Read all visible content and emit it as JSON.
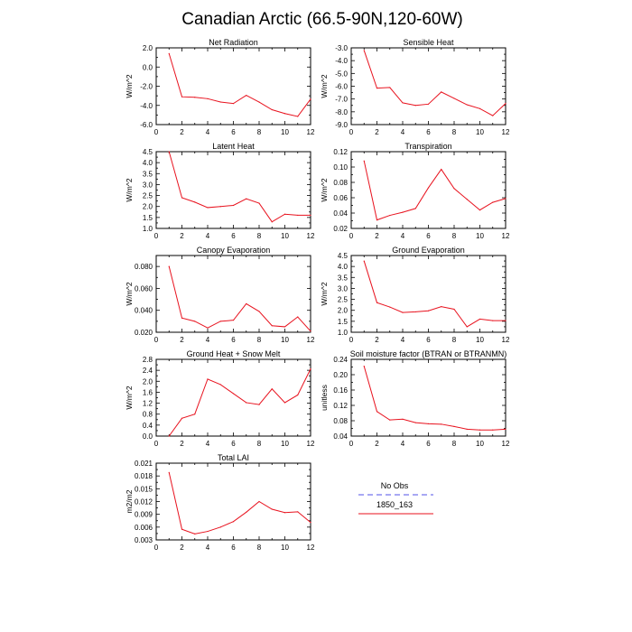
{
  "title": "Canadian Arctic (66.5-90N,120-60W)",
  "legend": {
    "items": [
      {
        "label": "No Obs",
        "color": "#8c8cf0",
        "dashed": true
      },
      {
        "label": "1850_163",
        "color": "#e8121e",
        "dashed": false
      }
    ]
  },
  "chart_data": [
    {
      "type": "line",
      "title": "Net Radiation",
      "ylabel": "W/m^2",
      "x": [
        1,
        2,
        3,
        4,
        5,
        6,
        7,
        8,
        9,
        10,
        11,
        12
      ],
      "xlim": [
        0,
        12
      ],
      "xticks": [
        0,
        2,
        4,
        6,
        8,
        10,
        12
      ],
      "ylim": [
        -6.0,
        2.0
      ],
      "yticks": [
        -6.0,
        -4.0,
        -2.0,
        0.0,
        2.0
      ],
      "ytick_labels": [
        "-6.0",
        "-4.0",
        "-2.0",
        "0.0",
        "2.0"
      ],
      "series": [
        {
          "color": "#e8121e",
          "values": [
            1.4,
            -3.1,
            -3.15,
            -3.3,
            -3.65,
            -3.8,
            -2.95,
            -3.65,
            -4.45,
            -4.85,
            -5.15,
            -3.35
          ]
        }
      ]
    },
    {
      "type": "line",
      "title": "Sensible Heat",
      "ylabel": "W/m^2",
      "x": [
        1,
        2,
        3,
        4,
        5,
        6,
        7,
        8,
        9,
        10,
        11,
        12
      ],
      "xlim": [
        0,
        12
      ],
      "xticks": [
        0,
        2,
        4,
        6,
        8,
        10,
        12
      ],
      "ylim": [
        -9.0,
        -3.0
      ],
      "yticks": [
        -9.0,
        -8.0,
        -7.0,
        -6.0,
        -5.0,
        -4.0,
        -3.0
      ],
      "ytick_labels": [
        "-9.0",
        "-8.0",
        "-7.0",
        "-6.0",
        "-5.0",
        "-4.0",
        "-3.0"
      ],
      "series": [
        {
          "color": "#e8121e",
          "values": [
            -3.2,
            -6.15,
            -6.1,
            -7.3,
            -7.5,
            -7.4,
            -6.45,
            -6.95,
            -7.45,
            -7.75,
            -8.3,
            -7.35
          ]
        }
      ]
    },
    {
      "type": "line",
      "title": "Latent Heat",
      "ylabel": "W/m^2",
      "x": [
        1,
        2,
        3,
        4,
        5,
        6,
        7,
        8,
        9,
        10,
        11,
        12
      ],
      "xlim": [
        0,
        12
      ],
      "xticks": [
        0,
        2,
        4,
        6,
        8,
        10,
        12
      ],
      "ylim": [
        1.0,
        4.5
      ],
      "yticks": [
        1.0,
        1.5,
        2.0,
        2.5,
        3.0,
        3.5,
        4.0,
        4.5
      ],
      "ytick_labels": [
        "1.0",
        "1.5",
        "2.0",
        "2.5",
        "3.0",
        "3.5",
        "4.0",
        "4.5"
      ],
      "series": [
        {
          "color": "#e8121e",
          "values": [
            4.5,
            2.4,
            2.2,
            1.95,
            2.0,
            2.05,
            2.35,
            2.15,
            1.3,
            1.65,
            1.6,
            1.6
          ]
        }
      ]
    },
    {
      "type": "line",
      "title": "Transpiration",
      "ylabel": "W/m^2",
      "x": [
        1,
        2,
        3,
        4,
        5,
        6,
        7,
        8,
        9,
        10,
        11,
        12
      ],
      "xlim": [
        0,
        12
      ],
      "xticks": [
        0,
        2,
        4,
        6,
        8,
        10,
        12
      ],
      "ylim": [
        0.02,
        0.12
      ],
      "yticks": [
        0.02,
        0.04,
        0.06,
        0.08,
        0.1,
        0.12
      ],
      "ytick_labels": [
        "0.02",
        "0.04",
        "0.06",
        "0.08",
        "0.10",
        "0.12"
      ],
      "series": [
        {
          "color": "#e8121e",
          "values": [
            0.108,
            0.031,
            0.037,
            0.041,
            0.046,
            0.073,
            0.097,
            0.072,
            0.058,
            0.044,
            0.054,
            0.059
          ]
        }
      ]
    },
    {
      "type": "line",
      "title": "Canopy Evaporation",
      "ylabel": "W/m^2",
      "x": [
        1,
        2,
        3,
        4,
        5,
        6,
        7,
        8,
        9,
        10,
        11,
        12
      ],
      "xlim": [
        0,
        12
      ],
      "xticks": [
        0,
        2,
        4,
        6,
        8,
        10,
        12
      ],
      "ylim": [
        0.02,
        0.09
      ],
      "yticks": [
        0.02,
        0.04,
        0.06,
        0.08
      ],
      "ytick_labels": [
        "0.020",
        "0.040",
        "0.060",
        "0.080"
      ],
      "series": [
        {
          "color": "#e8121e",
          "values": [
            0.08,
            0.033,
            0.03,
            0.024,
            0.03,
            0.031,
            0.046,
            0.039,
            0.026,
            0.025,
            0.034,
            0.021
          ]
        }
      ]
    },
    {
      "type": "line",
      "title": "Ground Evaporation",
      "ylabel": "W/m^2",
      "x": [
        1,
        2,
        3,
        4,
        5,
        6,
        7,
        8,
        9,
        10,
        11,
        12
      ],
      "xlim": [
        0,
        12
      ],
      "xticks": [
        0,
        2,
        4,
        6,
        8,
        10,
        12
      ],
      "ylim": [
        1.0,
        4.5
      ],
      "yticks": [
        1.0,
        1.5,
        2.0,
        2.5,
        3.0,
        3.5,
        4.0,
        4.5
      ],
      "ytick_labels": [
        "1.0",
        "1.5",
        "2.0",
        "2.5",
        "3.0",
        "3.5",
        "4.0",
        "4.5"
      ],
      "series": [
        {
          "color": "#e8121e",
          "values": [
            4.25,
            2.35,
            2.15,
            1.9,
            1.93,
            1.98,
            2.17,
            2.05,
            1.25,
            1.6,
            1.53,
            1.53
          ]
        }
      ]
    },
    {
      "type": "line",
      "title": "Ground Heat + Snow Melt",
      "ylabel": "W/m^2",
      "x": [
        1,
        2,
        3,
        4,
        5,
        6,
        7,
        8,
        9,
        10,
        11,
        12
      ],
      "xlim": [
        0,
        12
      ],
      "xticks": [
        0,
        2,
        4,
        6,
        8,
        10,
        12
      ],
      "ylim": [
        0.0,
        2.8
      ],
      "yticks": [
        0.0,
        0.4,
        0.8,
        1.2,
        1.6,
        2.0,
        2.4,
        2.8
      ],
      "ytick_labels": [
        "0.0",
        "0.4",
        "0.8",
        "1.2",
        "1.6",
        "2.0",
        "2.4",
        "2.8"
      ],
      "series": [
        {
          "color": "#e8121e",
          "values": [
            0.0,
            0.65,
            0.8,
            2.08,
            1.88,
            1.55,
            1.22,
            1.15,
            1.72,
            1.22,
            1.5,
            2.45
          ]
        }
      ]
    },
    {
      "type": "line",
      "title": "Soil moisture factor (BTRAN or BTRANMN)",
      "ylabel": "unitless",
      "x": [
        1,
        2,
        3,
        4,
        5,
        6,
        7,
        8,
        9,
        10,
        11,
        12
      ],
      "xlim": [
        0,
        12
      ],
      "xticks": [
        0,
        2,
        4,
        6,
        8,
        10,
        12
      ],
      "ylim": [
        0.04,
        0.24
      ],
      "yticks": [
        0.04,
        0.08,
        0.12,
        0.16,
        0.2,
        0.24
      ],
      "ytick_labels": [
        "0.04",
        "0.08",
        "0.12",
        "0.16",
        "0.20",
        "0.24"
      ],
      "series": [
        {
          "color": "#e8121e",
          "values": [
            0.222,
            0.104,
            0.082,
            0.084,
            0.075,
            0.072,
            0.071,
            0.065,
            0.058,
            0.056,
            0.056,
            0.058
          ]
        }
      ]
    },
    {
      "type": "line",
      "title": "Total LAI",
      "ylabel": "m2/m2",
      "x": [
        1,
        2,
        3,
        4,
        5,
        6,
        7,
        8,
        9,
        10,
        11,
        12
      ],
      "xlim": [
        0,
        12
      ],
      "xticks": [
        0,
        2,
        4,
        6,
        8,
        10,
        12
      ],
      "ylim": [
        0.003,
        0.021
      ],
      "yticks": [
        0.003,
        0.006,
        0.009,
        0.012,
        0.015,
        0.018,
        0.021
      ],
      "ytick_labels": [
        "0.003",
        "0.006",
        "0.009",
        "0.012",
        "0.015",
        "0.018",
        "0.021"
      ],
      "series": [
        {
          "color": "#e8121e",
          "values": [
            0.0188,
            0.0055,
            0.0044,
            0.005,
            0.006,
            0.0073,
            0.0095,
            0.012,
            0.0102,
            0.0094,
            0.0096,
            0.0071
          ]
        }
      ]
    }
  ]
}
